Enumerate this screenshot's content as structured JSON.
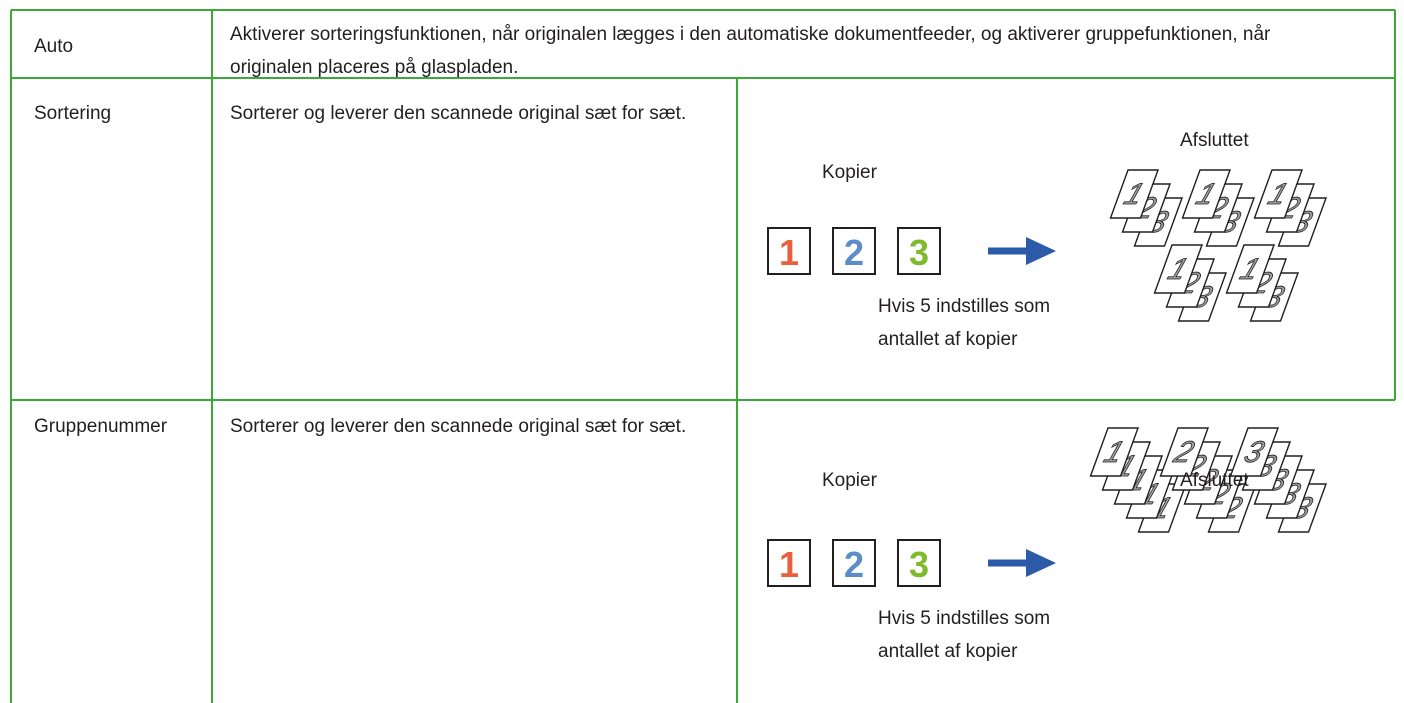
{
  "rows": [
    {
      "label": "Auto",
      "description": "Aktiverer sorteringsfunktionen, når originalen lægges i den automatiske dokumentfeeder, og aktiverer gruppefunktionen, når originalen placeres på glaspladen."
    },
    {
      "label": "Sortering",
      "description": "Sorterer og leverer den scannede original sæt for sæt.",
      "diagram": {
        "copies_label": "Kopier",
        "originals": [
          "1",
          "2",
          "3"
        ],
        "note": "Hvis 5 indstilles som antallet af kopier",
        "result_label": "Afsluttet"
      }
    },
    {
      "label": "Gruppenummer",
      "description": "Sorterer og leverer den scannede original sæt for sæt.",
      "diagram": {
        "copies_label": "Kopier",
        "originals": [
          "1",
          "2",
          "3"
        ],
        "note": "Hvis 5 indstilles som antallet af kopier",
        "result_label": "Afsluttet"
      }
    }
  ]
}
